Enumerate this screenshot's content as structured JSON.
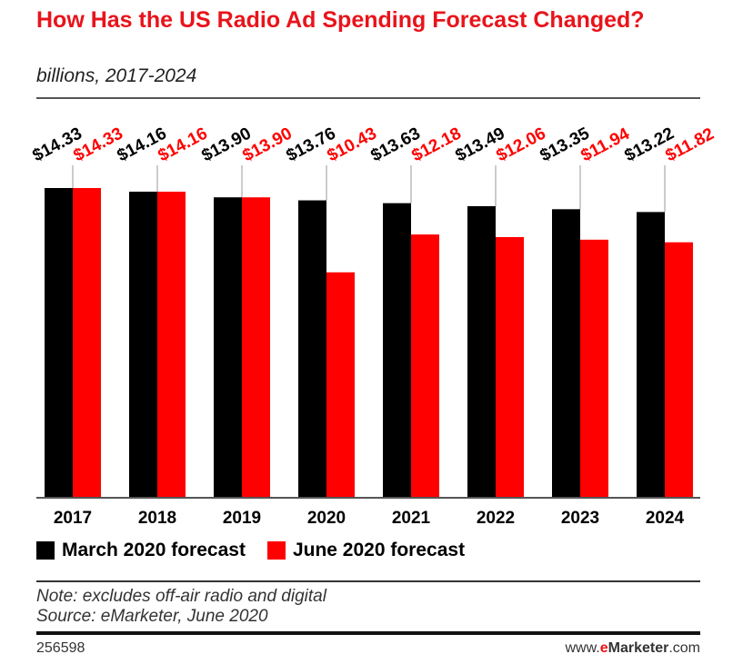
{
  "title": "How Has the US Radio Ad Spending Forecast Changed?",
  "subtitle": "billions, 2017-2024",
  "chart_data": {
    "type": "bar",
    "categories": [
      "2017",
      "2018",
      "2019",
      "2020",
      "2021",
      "2022",
      "2023",
      "2024"
    ],
    "series": [
      {
        "name": "March 2020 forecast",
        "color": "#000000",
        "values": [
          14.33,
          14.16,
          13.9,
          13.76,
          13.63,
          13.49,
          13.35,
          13.22
        ],
        "labels": [
          "$14.33",
          "$14.16",
          "$13.90",
          "$13.76",
          "$13.63",
          "$13.49",
          "$13.35",
          "$13.22"
        ]
      },
      {
        "name": "June 2020 forecast",
        "color": "#ff0000",
        "values": [
          14.33,
          14.16,
          13.9,
          10.43,
          12.18,
          12.06,
          11.94,
          11.82
        ],
        "labels": [
          "$14.33",
          "$14.16",
          "$13.90",
          "$10.43",
          "$12.18",
          "$12.06",
          "$11.94",
          "$11.82"
        ]
      }
    ],
    "ylim": [
      0,
      14.33
    ],
    "grid": false,
    "legend_position": "bottom-left"
  },
  "note": "Note: excludes off-air radio and digital",
  "source": "Source: eMarketer, June 2020",
  "chart_id": "256598",
  "brand": {
    "prefix": "www.",
    "e": "e",
    "name": "Marketer",
    "suffix": ".com"
  }
}
